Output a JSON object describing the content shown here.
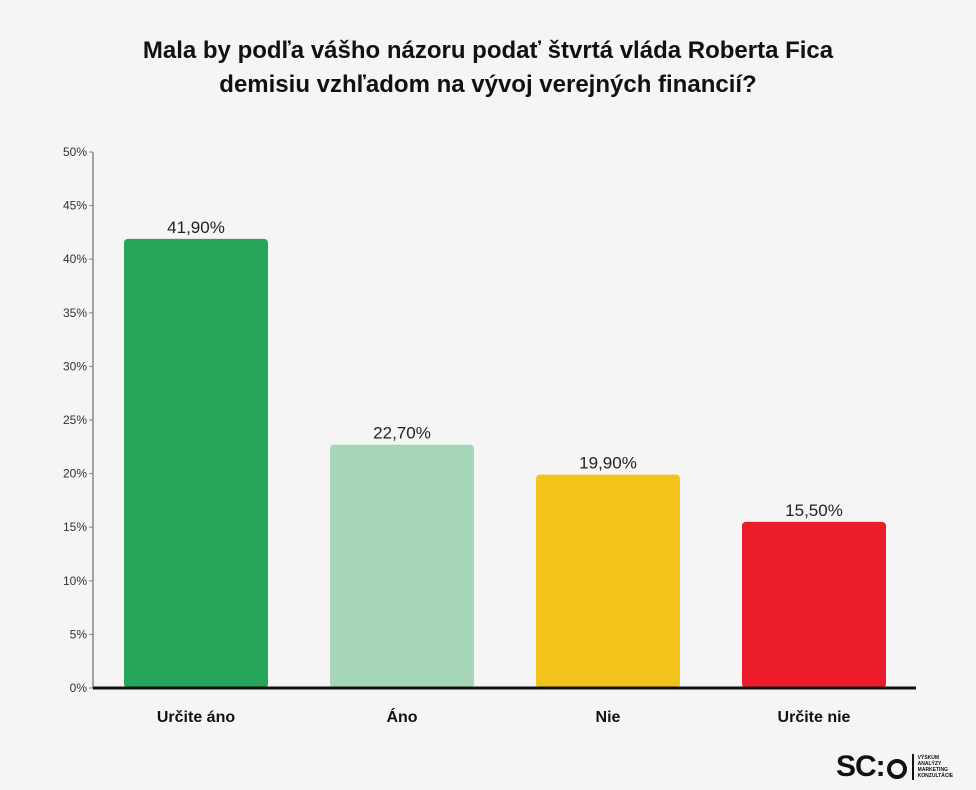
{
  "title_lines": [
    "Mala by podľa vášho názoru podať štvrtá vláda Roberta Fica",
    "demisiu vzhľadom na vývoj verejných financií?"
  ],
  "chart_data": {
    "type": "bar",
    "categories": [
      "Určite áno",
      "Áno",
      "Nie",
      "Určite nie"
    ],
    "values": [
      41.9,
      22.7,
      19.9,
      15.5
    ],
    "data_labels": [
      "41,90%",
      "22,70%",
      "19,90%",
      "15,50%"
    ],
    "colors": [
      "#27a55a",
      "#a5d6b5",
      "#f2c31a",
      "#ec1c2b"
    ],
    "ylim": [
      0,
      50
    ],
    "yticks": [
      0,
      5,
      10,
      15,
      20,
      25,
      30,
      35,
      40,
      45,
      50
    ],
    "ytick_labels": [
      "0%",
      "5%",
      "10%",
      "15%",
      "20%",
      "25%",
      "30%",
      "35%",
      "40%",
      "45%",
      "50%"
    ],
    "grid": false,
    "xlabel": "",
    "ylabel": ""
  },
  "logo": {
    "mark": "SC:",
    "text_lines": [
      "VÝSKUM",
      "ANALÝZY",
      "MARKETING",
      "KONZULTÁCIE"
    ]
  }
}
